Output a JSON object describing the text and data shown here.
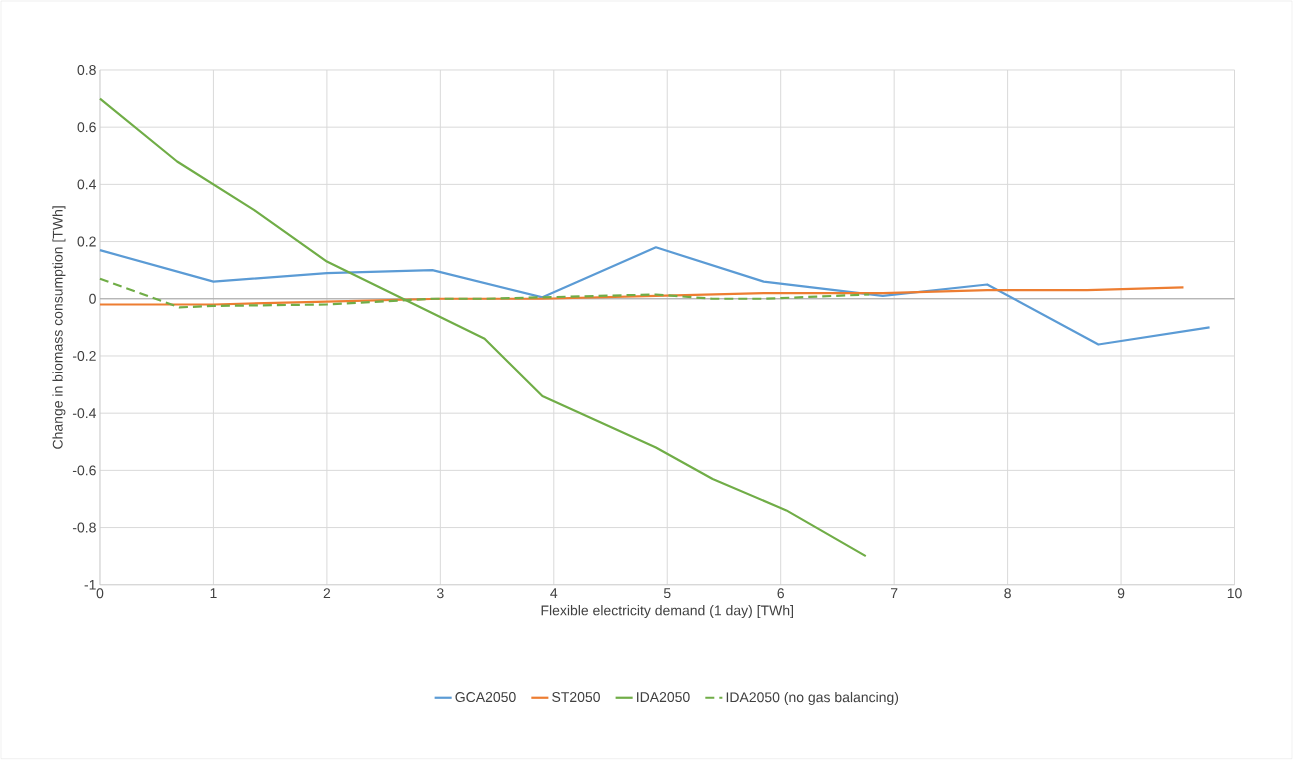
{
  "chart_data": {
    "type": "line",
    "xlabel": "Flexible electricity demand (1 day) [TWh]",
    "ylabel": "Change in biomass consumption [TWh]",
    "xlim": [
      0,
      10
    ],
    "xticks": [
      0,
      1,
      2,
      3,
      4,
      5,
      6,
      7,
      8,
      9,
      10
    ],
    "ylim": [
      -1,
      0.8
    ],
    "yticks": [
      -1,
      -0.8,
      -0.6,
      -0.4,
      -0.2,
      0,
      0.2,
      0.4,
      0.6,
      0.8
    ],
    "grid": true,
    "legend": "bottom",
    "marker": "none",
    "series": [
      {
        "name": "GCA2050",
        "color": "#5b9bd5",
        "line_style": "solid",
        "x": [
          0,
          1,
          2,
          2.93,
          3.9,
          4.9,
          5.85,
          6.9,
          7.82,
          8.8,
          9.78
        ],
        "values": [
          0.17,
          0.06,
          0.09,
          0.1,
          0.005,
          0.18,
          0.06,
          0.01,
          0.05,
          -0.16,
          -0.1
        ]
      },
      {
        "name": "ST2050",
        "color": "#ed7d31",
        "line_style": "solid",
        "x": [
          0,
          1,
          2,
          3,
          3.9,
          4.9,
          5.85,
          6.9,
          7.82,
          8.7,
          9.55
        ],
        "values": [
          -0.02,
          -0.02,
          -0.01,
          0,
          0,
          0.01,
          0.02,
          0.02,
          0.03,
          0.03,
          0.04
        ]
      },
      {
        "name": "IDA2050",
        "color": "#70ad47",
        "line_style": "solid",
        "x": [
          0,
          0.68,
          1.36,
          2.0,
          3.39,
          3.9,
          4.9,
          5.4,
          6.05,
          6.75
        ],
        "values": [
          0.7,
          0.48,
          0.31,
          0.13,
          -0.14,
          -0.34,
          -0.52,
          -0.63,
          -0.74,
          -0.9
        ]
      },
      {
        "name": "IDA2050 (no gas balancing)",
        "color": "#70ad47",
        "line_style": "dashed",
        "x": [
          0,
          0.7,
          1,
          2,
          2.93,
          3.4,
          3.9,
          4.9,
          5.4,
          5.85,
          6.78
        ],
        "values": [
          0.07,
          -0.03,
          -0.025,
          -0.02,
          0,
          0,
          0.005,
          0.015,
          0,
          0,
          0.015
        ]
      }
    ]
  }
}
